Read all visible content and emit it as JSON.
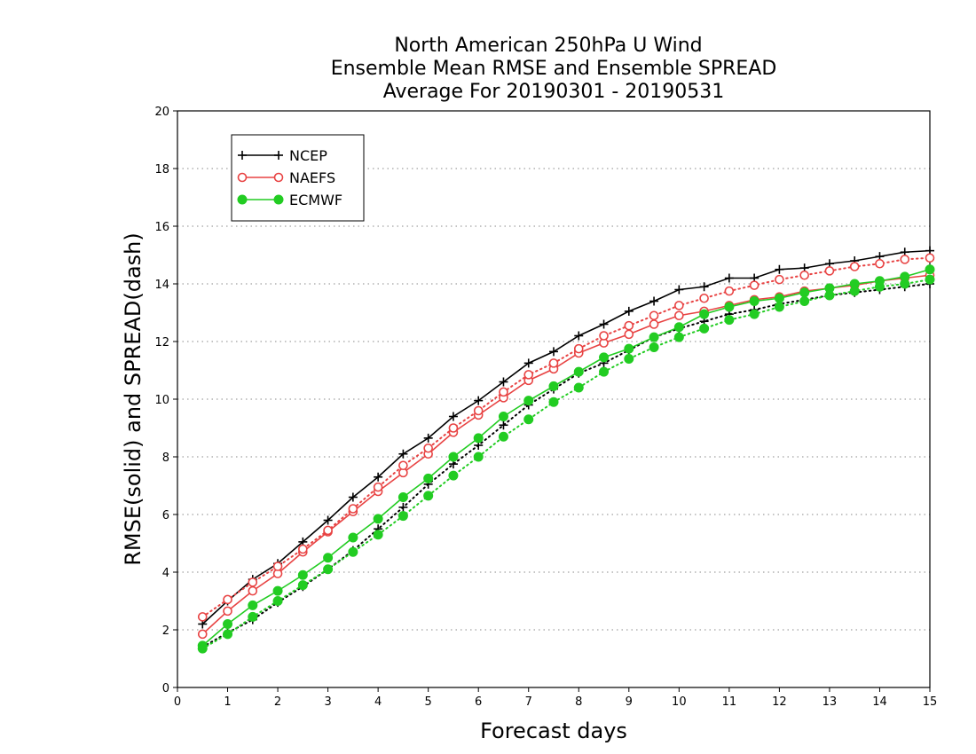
{
  "chart_data": {
    "type": "line",
    "title": [
      "North American 250hPa U Wind",
      "Ensemble Mean RMSE and Ensemble SPREAD",
      "Average For 20190301 - 20190531"
    ],
    "xlabel": "Forecast days",
    "ylabel": "RMSE(solid) and SPREAD(dash)",
    "xlim": [
      0,
      15
    ],
    "ylim": [
      0,
      20
    ],
    "xticks": [
      0,
      1,
      2,
      3,
      4,
      5,
      6,
      7,
      8,
      9,
      10,
      11,
      12,
      13,
      14,
      15
    ],
    "yticks": [
      0,
      2,
      4,
      6,
      8,
      10,
      12,
      14,
      16,
      18,
      20
    ],
    "grid": "horizontal dotted",
    "legend_position": "top-left",
    "x": [
      0.5,
      1,
      1.5,
      2,
      2.5,
      3,
      3.5,
      4,
      4.5,
      5,
      5.5,
      6,
      6.5,
      7,
      7.5,
      8,
      8.5,
      9,
      9.5,
      10,
      10.5,
      11,
      11.5,
      12,
      12.5,
      13,
      13.5,
      14,
      14.5,
      15
    ],
    "series": [
      {
        "name": "NCEP",
        "metric": "RMSE",
        "style": "solid",
        "marker": "plus",
        "color": "#000000",
        "values": [
          2.2,
          3.0,
          3.75,
          4.3,
          5.05,
          5.8,
          6.6,
          7.3,
          8.1,
          8.65,
          9.4,
          9.95,
          10.6,
          11.25,
          11.65,
          12.2,
          12.6,
          13.05,
          13.4,
          13.8,
          13.9,
          14.2,
          14.2,
          14.5,
          14.55,
          14.7,
          14.8,
          14.95,
          15.1,
          15.15
        ]
      },
      {
        "name": "NCEP",
        "metric": "SPREAD",
        "style": "dotted",
        "marker": "plus",
        "color": "#000000",
        "values": [
          1.4,
          1.9,
          2.35,
          2.95,
          3.5,
          4.1,
          4.75,
          5.5,
          6.25,
          7.05,
          7.75,
          8.4,
          9.1,
          9.8,
          10.35,
          10.9,
          11.25,
          11.7,
          12.15,
          12.45,
          12.7,
          12.95,
          13.1,
          13.3,
          13.45,
          13.6,
          13.7,
          13.8,
          13.9,
          14.0
        ]
      },
      {
        "name": "NAEFS",
        "metric": "RMSE",
        "style": "solid",
        "marker": "open-circle",
        "color": "#e84343",
        "values": [
          1.85,
          2.65,
          3.35,
          3.95,
          4.7,
          5.4,
          6.1,
          6.8,
          7.45,
          8.1,
          8.85,
          9.45,
          10.05,
          10.65,
          11.05,
          11.6,
          11.95,
          12.25,
          12.6,
          12.9,
          13.05,
          13.25,
          13.45,
          13.55,
          13.75,
          13.85,
          13.95,
          14.1,
          14.2,
          14.3
        ]
      },
      {
        "name": "NAEFS",
        "metric": "SPREAD",
        "style": "dotted",
        "marker": "open-circle",
        "color": "#e84343",
        "values": [
          2.45,
          3.05,
          3.65,
          4.2,
          4.8,
          5.45,
          6.2,
          6.95,
          7.7,
          8.3,
          9.0,
          9.6,
          10.25,
          10.85,
          11.25,
          11.75,
          12.2,
          12.55,
          12.9,
          13.25,
          13.5,
          13.75,
          13.95,
          14.15,
          14.3,
          14.45,
          14.6,
          14.7,
          14.85,
          14.9
        ]
      },
      {
        "name": "ECMWF",
        "metric": "RMSE",
        "style": "solid",
        "marker": "filled-circle",
        "color": "#22cc22",
        "values": [
          1.45,
          2.2,
          2.85,
          3.35,
          3.9,
          4.5,
          5.2,
          5.85,
          6.6,
          7.25,
          8.0,
          8.65,
          9.4,
          9.95,
          10.45,
          10.95,
          11.45,
          11.75,
          12.15,
          12.5,
          12.95,
          13.2,
          13.4,
          13.5,
          13.7,
          13.85,
          14.0,
          14.1,
          14.25,
          14.5
        ]
      },
      {
        "name": "ECMWF",
        "metric": "SPREAD",
        "style": "dotted",
        "marker": "filled-circle",
        "color": "#22cc22",
        "values": [
          1.35,
          1.85,
          2.45,
          3.0,
          3.55,
          4.1,
          4.7,
          5.3,
          5.95,
          6.65,
          7.35,
          8.0,
          8.7,
          9.3,
          9.9,
          10.4,
          10.95,
          11.4,
          11.8,
          12.15,
          12.45,
          12.75,
          12.95,
          13.2,
          13.4,
          13.6,
          13.75,
          13.9,
          14.0,
          14.15
        ]
      }
    ],
    "legend": [
      {
        "label": "NCEP",
        "marker": "plus",
        "color": "#000000"
      },
      {
        "label": "NAEFS",
        "marker": "open-circle",
        "color": "#e84343"
      },
      {
        "label": "ECMWF",
        "marker": "filled-circle",
        "color": "#22cc22"
      }
    ]
  }
}
